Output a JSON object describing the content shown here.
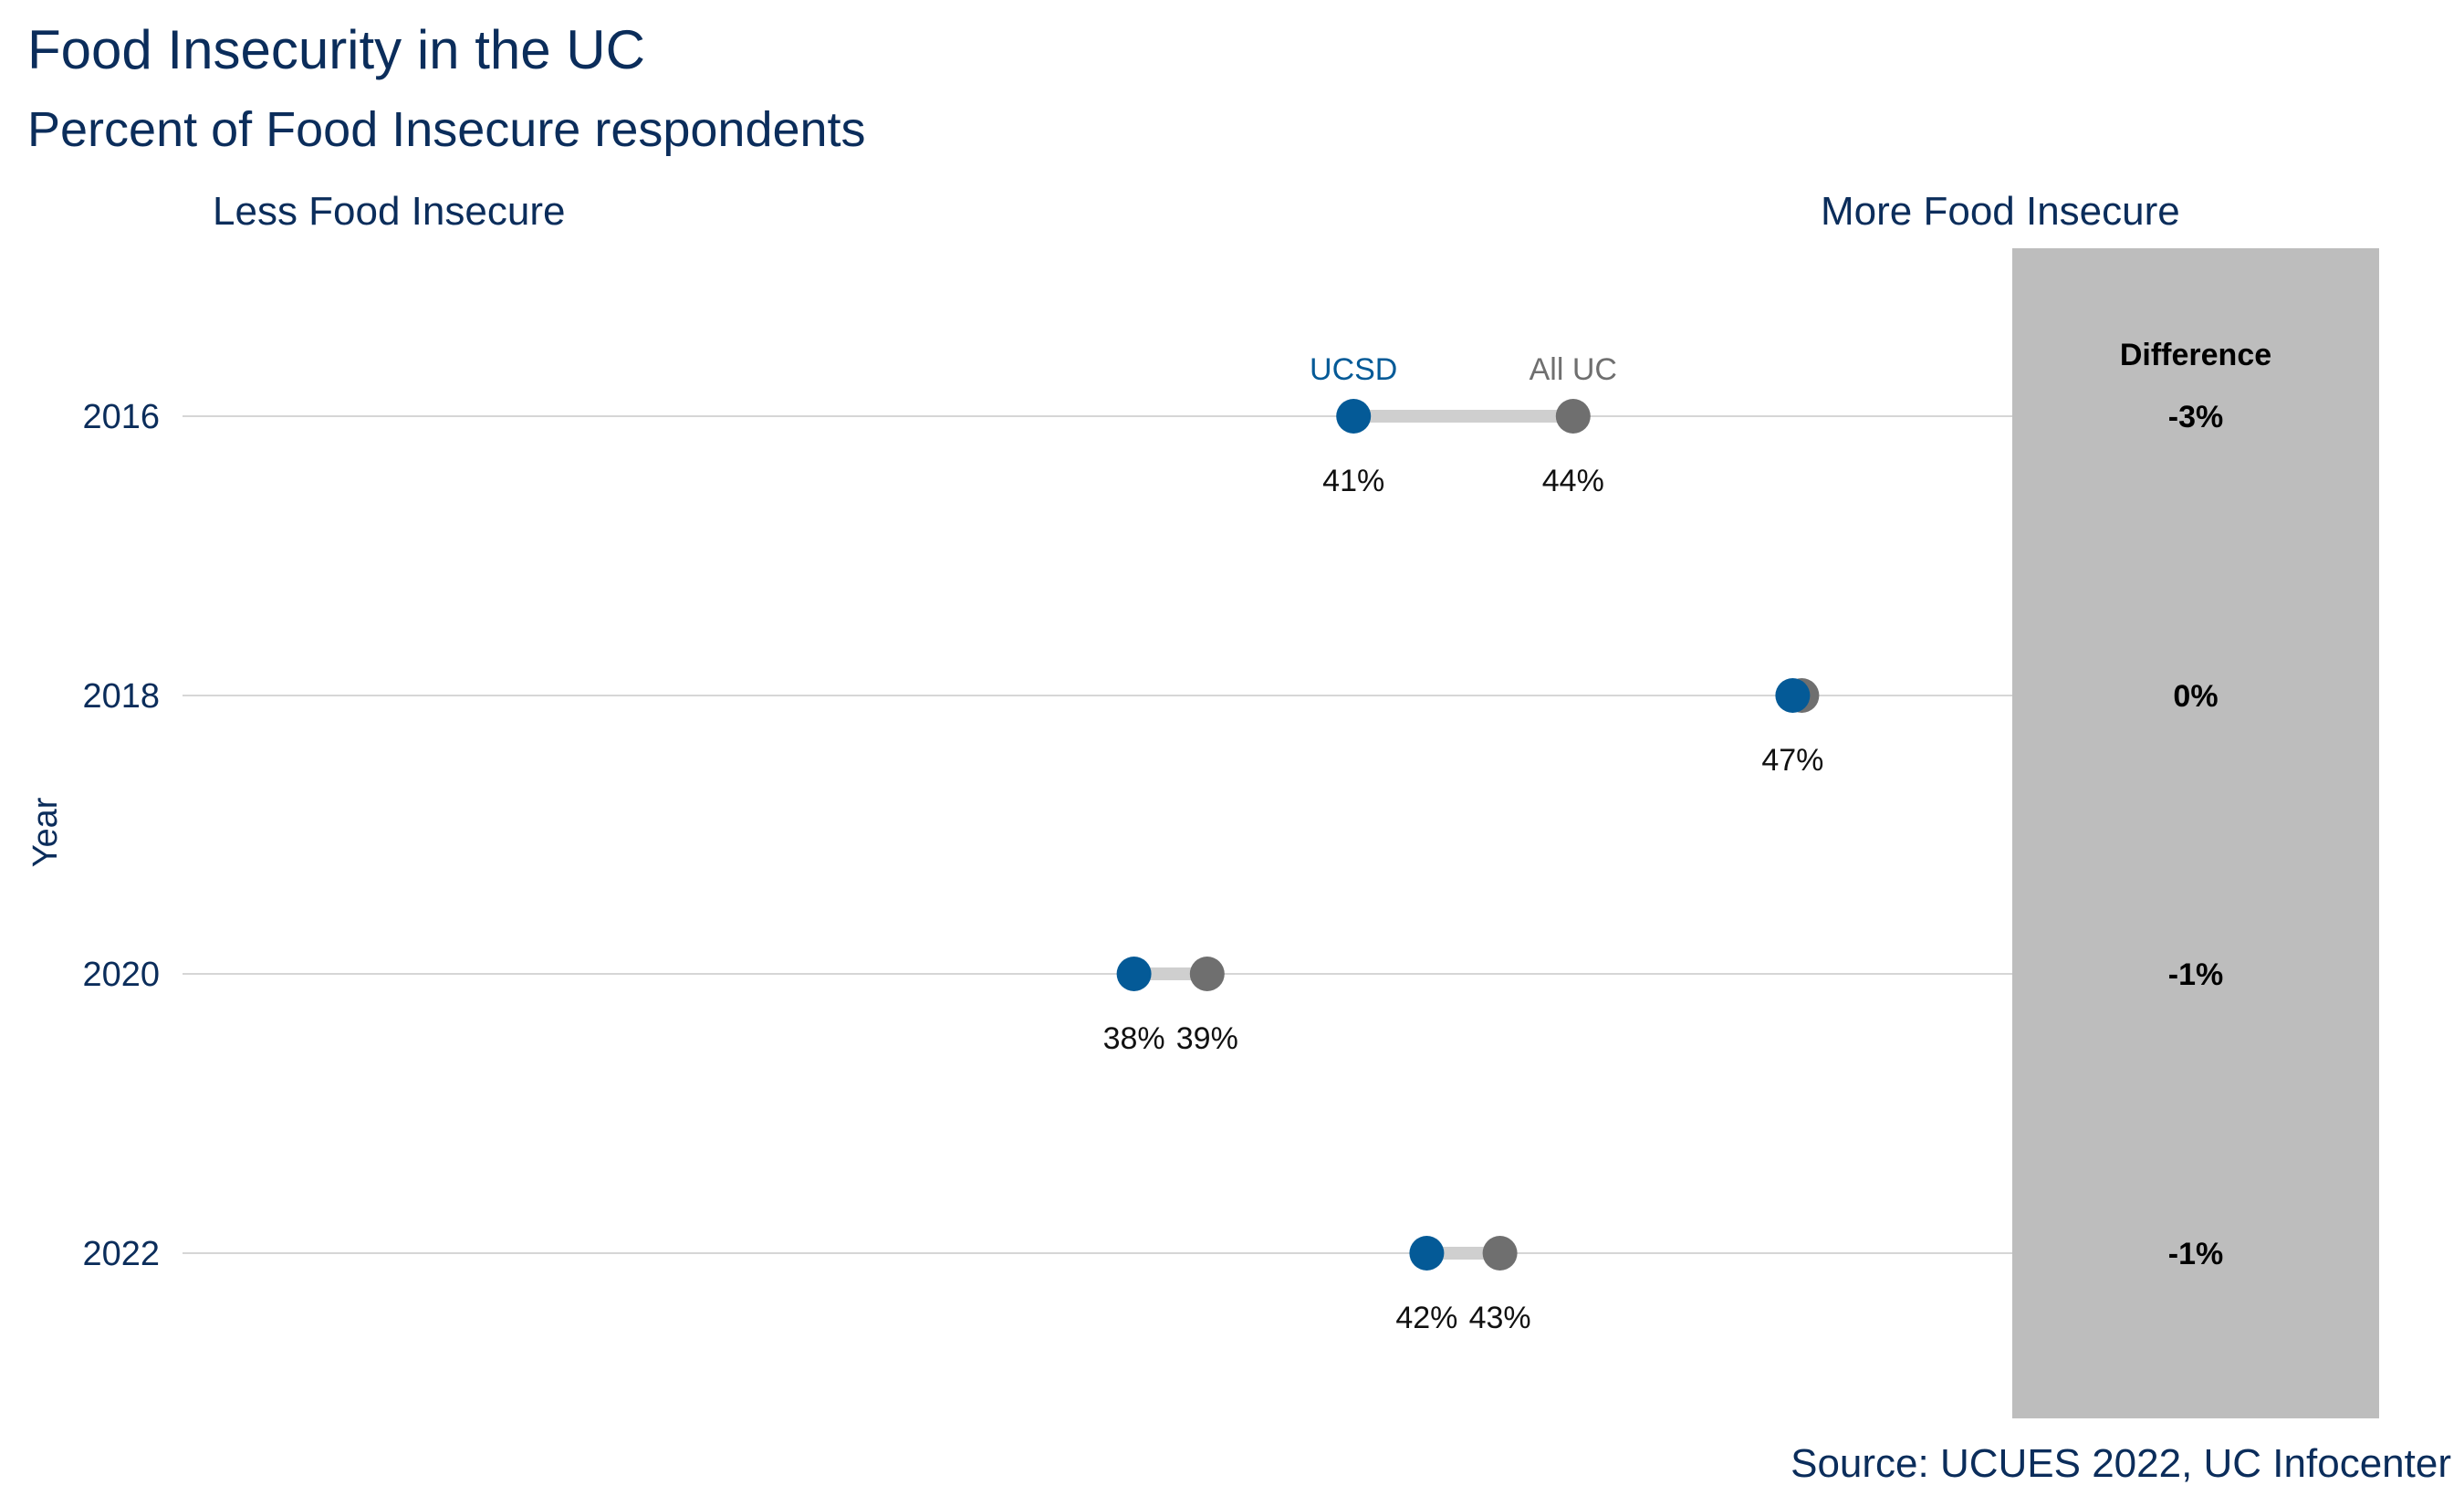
{
  "chart_data": {
    "type": "dumbbell",
    "title": "Food Insecurity in the UC",
    "subtitle": "Percent of Food Insecure respondents",
    "left_annotation": "Less Food Insecure",
    "right_annotation": "More Food Insecure",
    "ylabel": "Year",
    "categories": [
      "2016",
      "2018",
      "2020",
      "2022"
    ],
    "series": [
      {
        "name": "UCSD",
        "values": [
          41,
          47,
          38,
          42
        ],
        "labels": [
          "41%",
          "47%",
          "38%",
          "42%"
        ],
        "color": "#045a97"
      },
      {
        "name": "All UC",
        "values": [
          44,
          47,
          39,
          43
        ],
        "labels": [
          "44%",
          "",
          "39%",
          "43%"
        ],
        "color": "#6f6f6f"
      }
    ],
    "difference": {
      "header": "Difference",
      "values": [
        "-3%",
        "0%",
        "-1%",
        "-1%"
      ],
      "panel_color": "#bdbdbd"
    },
    "connector_color": "#cfcfcf",
    "grid": "horizontal",
    "xlim": [
      25,
      50
    ],
    "source": "Source: UCUES 2022, UC Infocenter"
  }
}
